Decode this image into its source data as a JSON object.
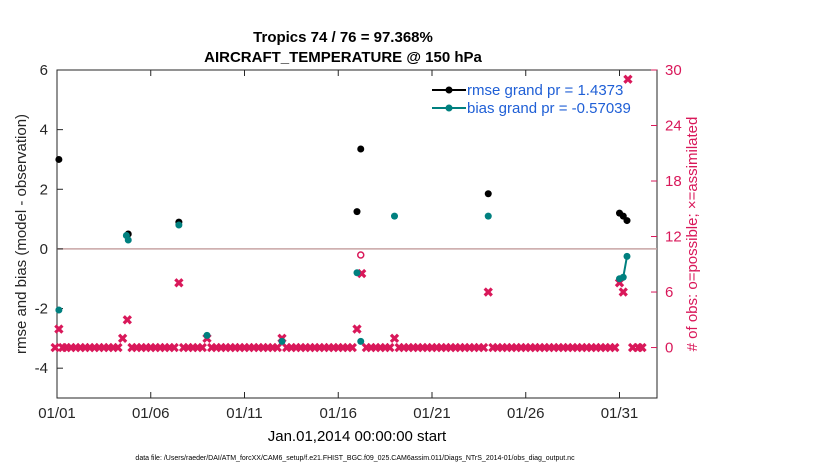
{
  "chart_data": {
    "type": "scatter",
    "title": "Tropics 74 / 76 = 97.368%",
    "subtitle": "AIRCRAFT_TEMPERATURE @ 150 hPa",
    "xlabel": "Jan.01,2014 00:00:00 start",
    "ylabel": "rmse and bias (model - observation)",
    "y2label": "# of obs: o=possible; ×=assimilated",
    "footnote": "data file: /Users/raeder/DAI/ATM_forcXX/CAM6_setup/f.e21.FHIST_BGC.f09_025.CAM6assim.011/Diags_NTrS_2014-01/obs_diag_output.nc",
    "xlim": [
      1,
      33
    ],
    "ylim": [
      -5,
      6
    ],
    "y2lim": [
      -5.4545,
      30
    ],
    "x_ticks": [
      1,
      6,
      11,
      16,
      21,
      26,
      31
    ],
    "x_tick_labels": [
      "01/01",
      "01/06",
      "01/11",
      "01/16",
      "01/21",
      "01/26",
      "01/31"
    ],
    "y_ticks": [
      -4,
      -2,
      0,
      2,
      4,
      6
    ],
    "y_tick_labels": [
      "-4",
      "-2",
      "0",
      "2",
      "4",
      "6"
    ],
    "y2_ticks": [
      0,
      6,
      12,
      18,
      24,
      30
    ],
    "y2_tick_labels": [
      "0",
      "6",
      "12",
      "18",
      "24",
      "30"
    ],
    "colors": {
      "rmse": "#000000",
      "bias": "#00807f",
      "obs": "#d9185a",
      "zero_line": "#c8a4a4",
      "legend_text": "#1f5fd6"
    },
    "series": [
      {
        "name": "rmse grand pr = 1.4373",
        "color": "#000000",
        "axis": "left",
        "points": [
          [
            1.1,
            3.0
          ],
          [
            4.8,
            0.5
          ],
          [
            7.5,
            0.9
          ],
          [
            17.0,
            1.25
          ],
          [
            17.2,
            3.35
          ],
          [
            24.0,
            1.85
          ],
          [
            31.0,
            1.2
          ],
          [
            31.2,
            1.1
          ],
          [
            31.4,
            0.95
          ]
        ]
      },
      {
        "name": "bias grand pr = -0.57039",
        "color": "#00807f",
        "axis": "left",
        "points": [
          [
            1.1,
            -2.05
          ],
          [
            4.7,
            0.45
          ],
          [
            4.8,
            0.3
          ],
          [
            7.5,
            0.8
          ],
          [
            9.0,
            -2.9
          ],
          [
            13.0,
            -3.1
          ],
          [
            17.0,
            -0.8
          ],
          [
            17.2,
            -3.1
          ],
          [
            19.0,
            1.1
          ],
          [
            24.0,
            1.1
          ],
          [
            31.0,
            -1.0
          ],
          [
            31.2,
            -0.95
          ],
          [
            31.4,
            -0.25
          ]
        ],
        "connected_segment": [
          [
            31.0,
            -1.0
          ],
          [
            31.2,
            -0.95
          ],
          [
            31.4,
            -0.25
          ]
        ]
      },
      {
        "name": "obs possible",
        "color": "#d9185a",
        "axis": "right",
        "marker": "o",
        "points": [
          [
            17.2,
            10
          ]
        ]
      },
      {
        "name": "obs assimilated",
        "color": "#d9185a",
        "axis": "right",
        "marker": "x",
        "points": [
          [
            0.9,
            0
          ],
          [
            1.1,
            2
          ],
          [
            1.3,
            0
          ],
          [
            1.5,
            0
          ],
          [
            1.75,
            0
          ],
          [
            2.0,
            0
          ],
          [
            2.25,
            0
          ],
          [
            2.5,
            0
          ],
          [
            2.75,
            0
          ],
          [
            3.0,
            0
          ],
          [
            3.25,
            0
          ],
          [
            3.5,
            0
          ],
          [
            3.75,
            0
          ],
          [
            4.0,
            0
          ],
          [
            4.25,
            0
          ],
          [
            4.5,
            1
          ],
          [
            4.75,
            3
          ],
          [
            5.0,
            0
          ],
          [
            5.25,
            0
          ],
          [
            5.5,
            0
          ],
          [
            5.75,
            0
          ],
          [
            6.0,
            0
          ],
          [
            6.25,
            0
          ],
          [
            6.5,
            0
          ],
          [
            6.75,
            0
          ],
          [
            7.0,
            0
          ],
          [
            7.25,
            0
          ],
          [
            7.5,
            7
          ],
          [
            7.75,
            0
          ],
          [
            8.0,
            0
          ],
          [
            8.25,
            0
          ],
          [
            8.5,
            0
          ],
          [
            8.75,
            0
          ],
          [
            9.0,
            1
          ],
          [
            9.25,
            0
          ],
          [
            9.5,
            0
          ],
          [
            9.75,
            0
          ],
          [
            10.0,
            0
          ],
          [
            10.25,
            0
          ],
          [
            10.5,
            0
          ],
          [
            10.75,
            0
          ],
          [
            11.0,
            0
          ],
          [
            11.25,
            0
          ],
          [
            11.5,
            0
          ],
          [
            11.75,
            0
          ],
          [
            12.0,
            0
          ],
          [
            12.25,
            0
          ],
          [
            12.5,
            0
          ],
          [
            12.75,
            0
          ],
          [
            13.0,
            1
          ],
          [
            13.25,
            0
          ],
          [
            13.5,
            0
          ],
          [
            13.75,
            0
          ],
          [
            14.0,
            0
          ],
          [
            14.25,
            0
          ],
          [
            14.5,
            0
          ],
          [
            14.75,
            0
          ],
          [
            15.0,
            0
          ],
          [
            15.25,
            0
          ],
          [
            15.5,
            0
          ],
          [
            15.75,
            0
          ],
          [
            16.0,
            0
          ],
          [
            16.25,
            0
          ],
          [
            16.5,
            0
          ],
          [
            16.75,
            0
          ],
          [
            17.0,
            2
          ],
          [
            17.25,
            8
          ],
          [
            17.5,
            0
          ],
          [
            17.75,
            0
          ],
          [
            18.0,
            0
          ],
          [
            18.25,
            0
          ],
          [
            18.5,
            0
          ],
          [
            18.75,
            0
          ],
          [
            19.0,
            1
          ],
          [
            19.25,
            0
          ],
          [
            19.5,
            0
          ],
          [
            19.75,
            0
          ],
          [
            20.0,
            0
          ],
          [
            20.25,
            0
          ],
          [
            20.5,
            0
          ],
          [
            20.75,
            0
          ],
          [
            21.0,
            0
          ],
          [
            21.25,
            0
          ],
          [
            21.5,
            0
          ],
          [
            21.75,
            0
          ],
          [
            22.0,
            0
          ],
          [
            22.25,
            0
          ],
          [
            22.5,
            0
          ],
          [
            22.75,
            0
          ],
          [
            23.0,
            0
          ],
          [
            23.25,
            0
          ],
          [
            23.5,
            0
          ],
          [
            23.75,
            0
          ],
          [
            24.0,
            6
          ],
          [
            24.25,
            0
          ],
          [
            24.5,
            0
          ],
          [
            24.75,
            0
          ],
          [
            25.0,
            0
          ],
          [
            25.25,
            0
          ],
          [
            25.5,
            0
          ],
          [
            25.75,
            0
          ],
          [
            26.0,
            0
          ],
          [
            26.25,
            0
          ],
          [
            26.5,
            0
          ],
          [
            26.75,
            0
          ],
          [
            27.0,
            0
          ],
          [
            27.25,
            0
          ],
          [
            27.5,
            0
          ],
          [
            27.75,
            0
          ],
          [
            28.0,
            0
          ],
          [
            28.25,
            0
          ],
          [
            28.5,
            0
          ],
          [
            28.75,
            0
          ],
          [
            29.0,
            0
          ],
          [
            29.25,
            0
          ],
          [
            29.5,
            0
          ],
          [
            29.75,
            0
          ],
          [
            30.0,
            0
          ],
          [
            30.25,
            0
          ],
          [
            30.5,
            0
          ],
          [
            30.75,
            0
          ],
          [
            31.0,
            7
          ],
          [
            31.2,
            6
          ],
          [
            31.45,
            29
          ],
          [
            31.7,
            0
          ],
          [
            32.0,
            0
          ],
          [
            32.2,
            0
          ]
        ]
      }
    ],
    "legend": [
      "rmse grand pr = 1.4373",
      "bias grand pr = -0.57039"
    ],
    "legend_position": "top-right",
    "grid": false
  }
}
